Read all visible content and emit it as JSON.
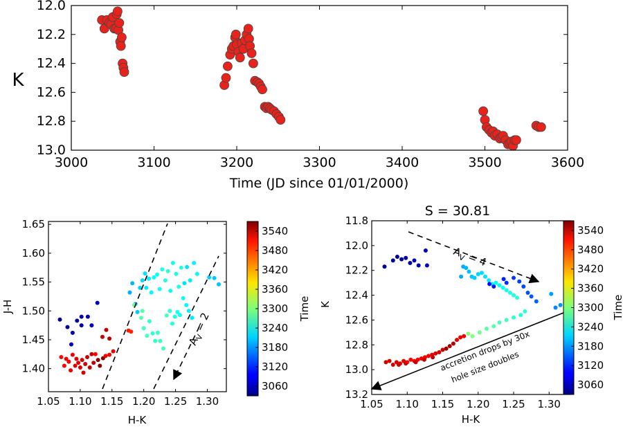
{
  "chart_data": [
    {
      "id": "top",
      "type": "scatter",
      "title": "",
      "xlabel": "Time (JD since 01/01/2000)",
      "ylabel": "K",
      "xlim": [
        3000,
        3600
      ],
      "ylim": [
        13.0,
        12.0
      ],
      "y_inverted": true,
      "xticks": [
        3000,
        3100,
        3200,
        3300,
        3400,
        3500,
        3600
      ],
      "yticks": [
        12.0,
        12.2,
        12.4,
        12.6,
        12.8,
        13.0
      ],
      "xtick_labels": [
        "3000",
        "3100",
        "3200",
        "3300",
        "3400",
        "3500",
        "3600"
      ],
      "ytick_labels": [
        "12.0",
        "12.2",
        "12.4",
        "12.6",
        "12.8",
        "13.0"
      ],
      "marker_color": "#e8231c",
      "marker_edge": "#444444",
      "points": [
        [
          3037,
          12.1
        ],
        [
          3040,
          12.16
        ],
        [
          3043,
          12.1
        ],
        [
          3046,
          12.12
        ],
        [
          3048,
          12.13
        ],
        [
          3050,
          12.08
        ],
        [
          3052,
          12.16
        ],
        [
          3054,
          12.16
        ],
        [
          3055,
          12.06
        ],
        [
          3056,
          12.04
        ],
        [
          3057,
          12.17
        ],
        [
          3058,
          12.12
        ],
        [
          3059,
          12.25
        ],
        [
          3060,
          12.28
        ],
        [
          3061,
          12.22
        ],
        [
          3062,
          12.4
        ],
        [
          3063,
          12.43
        ],
        [
          3064,
          12.46
        ],
        [
          3185,
          12.55
        ],
        [
          3187,
          12.5
        ],
        [
          3189,
          12.42
        ],
        [
          3192,
          12.34
        ],
        [
          3194,
          12.3
        ],
        [
          3196,
          12.28
        ],
        [
          3198,
          12.22
        ],
        [
          3199,
          12.2
        ],
        [
          3200,
          12.27
        ],
        [
          3202,
          12.32
        ],
        [
          3204,
          12.36
        ],
        [
          3206,
          12.26
        ],
        [
          3208,
          12.3
        ],
        [
          3210,
          12.24
        ],
        [
          3212,
          12.2
        ],
        [
          3214,
          12.16
        ],
        [
          3215,
          12.23
        ],
        [
          3216,
          12.28
        ],
        [
          3218,
          12.33
        ],
        [
          3220,
          12.4
        ],
        [
          3222,
          12.52
        ],
        [
          3225,
          12.53
        ],
        [
          3227,
          12.54
        ],
        [
          3229,
          12.56
        ],
        [
          3231,
          12.58
        ],
        [
          3234,
          12.7
        ],
        [
          3236,
          12.71
        ],
        [
          3238,
          12.7
        ],
        [
          3240,
          12.71
        ],
        [
          3242,
          12.72
        ],
        [
          3245,
          12.73
        ],
        [
          3248,
          12.75
        ],
        [
          3251,
          12.77
        ],
        [
          3253,
          12.79
        ],
        [
          3498,
          12.73
        ],
        [
          3500,
          12.79
        ],
        [
          3502,
          12.84
        ],
        [
          3505,
          12.86
        ],
        [
          3508,
          12.88
        ],
        [
          3510,
          12.87
        ],
        [
          3512,
          12.9
        ],
        [
          3515,
          12.89
        ],
        [
          3518,
          12.92
        ],
        [
          3520,
          12.91
        ],
        [
          3522,
          12.9
        ],
        [
          3525,
          12.93
        ],
        [
          3528,
          12.96
        ],
        [
          3530,
          12.95
        ],
        [
          3532,
          12.94
        ],
        [
          3534,
          12.97
        ],
        [
          3536,
          12.93
        ],
        [
          3538,
          12.93
        ],
        [
          3562,
          12.83
        ],
        [
          3565,
          12.84
        ],
        [
          3568,
          12.84
        ]
      ]
    },
    {
      "id": "left",
      "type": "scatter",
      "title": "",
      "xlabel": "H-K",
      "ylabel": "J-H",
      "xlim": [
        1.05,
        1.33
      ],
      "ylim": [
        1.36,
        1.655
      ],
      "xticks": [
        1.05,
        1.1,
        1.15,
        1.2,
        1.25,
        1.3
      ],
      "yticks": [
        1.4,
        1.45,
        1.5,
        1.55,
        1.6,
        1.65
      ],
      "xtick_labels": [
        "1.05",
        "1.10",
        "1.15",
        "1.20",
        "1.25",
        "1.30"
      ],
      "ytick_labels": [
        "1.40",
        "1.45",
        "1.50",
        "1.55",
        "1.60",
        "1.65"
      ],
      "colorbar": {
        "label": "Time",
        "vmin": 3030,
        "vmax": 3570,
        "ticks": [
          3060,
          3120,
          3180,
          3240,
          3300,
          3360,
          3420,
          3480,
          3540
        ],
        "tick_labels": [
          "3060",
          "3120",
          "3180",
          "3240",
          "3300",
          "3360",
          "3420",
          "3480",
          "3540"
        ]
      },
      "annotation": "A",
      "annotation_sub": "V",
      "annotation_tail": " = 2",
      "points": [
        [
          1.068,
          1.485,
          3040
        ],
        [
          1.08,
          1.472,
          3045
        ],
        [
          1.088,
          1.462,
          3050
        ],
        [
          1.095,
          1.483,
          3048
        ],
        [
          1.102,
          1.49,
          3055
        ],
        [
          1.102,
          1.475,
          3056
        ],
        [
          1.112,
          1.49,
          3058
        ],
        [
          1.118,
          1.475,
          3060
        ],
        [
          1.127,
          1.514,
          3062
        ],
        [
          1.086,
          1.442,
          3064
        ],
        [
          1.135,
          1.455,
          3530
        ],
        [
          1.141,
          1.467,
          3535
        ],
        [
          1.146,
          1.452,
          3540
        ],
        [
          1.07,
          1.42,
          3500
        ],
        [
          1.075,
          1.405,
          3502
        ],
        [
          1.078,
          1.417,
          3505
        ],
        [
          1.082,
          1.412,
          3508
        ],
        [
          1.085,
          1.397,
          3510
        ],
        [
          1.088,
          1.424,
          3512
        ],
        [
          1.092,
          1.405,
          3515
        ],
        [
          1.094,
          1.417,
          3518
        ],
        [
          1.097,
          1.41,
          3520
        ],
        [
          1.1,
          1.402,
          3522
        ],
        [
          1.103,
          1.415,
          3524
        ],
        [
          1.105,
          1.393,
          3526
        ],
        [
          1.108,
          1.408,
          3528
        ],
        [
          1.111,
          1.42,
          3530
        ],
        [
          1.115,
          1.402,
          3532
        ],
        [
          1.118,
          1.425,
          3534
        ],
        [
          1.121,
          1.41,
          3536
        ],
        [
          1.124,
          1.425,
          3498
        ],
        [
          1.128,
          1.415,
          3562
        ],
        [
          1.131,
          1.405,
          3565
        ],
        [
          1.136,
          1.418,
          3568
        ],
        [
          1.14,
          1.422,
          3507
        ],
        [
          1.146,
          1.424,
          3503
        ],
        [
          1.152,
          1.43,
          3511
        ],
        [
          1.176,
          1.466,
          3490
        ],
        [
          1.18,
          1.464,
          3485
        ],
        [
          1.178,
          1.532,
          3190
        ],
        [
          1.182,
          1.548,
          3194
        ],
        [
          1.187,
          1.512,
          3200
        ],
        [
          1.19,
          1.498,
          3205
        ],
        [
          1.194,
          1.54,
          3210
        ],
        [
          1.198,
          1.553,
          3214
        ],
        [
          1.202,
          1.565,
          3218
        ],
        [
          1.204,
          1.54,
          3222
        ],
        [
          1.208,
          1.556,
          3226
        ],
        [
          1.212,
          1.532,
          3230
        ],
        [
          1.216,
          1.558,
          3234
        ],
        [
          1.221,
          1.563,
          3238
        ],
        [
          1.225,
          1.538,
          3242
        ],
        [
          1.229,
          1.572,
          3246
        ],
        [
          1.234,
          1.553,
          3250
        ],
        [
          1.238,
          1.569,
          3253
        ],
        [
          1.242,
          1.535,
          3236
        ],
        [
          1.246,
          1.583,
          3240
        ],
        [
          1.251,
          1.564,
          3244
        ],
        [
          1.255,
          1.542,
          3248
        ],
        [
          1.259,
          1.575,
          3252
        ],
        [
          1.264,
          1.548,
          3216
        ],
        [
          1.268,
          1.576,
          3220
        ],
        [
          1.273,
          1.553,
          3224
        ],
        [
          1.279,
          1.583,
          3228
        ],
        [
          1.284,
          1.564,
          3232
        ],
        [
          1.303,
          1.558,
          3208
        ],
        [
          1.311,
          1.557,
          3204
        ],
        [
          1.318,
          1.546,
          3200
        ],
        [
          1.185,
          1.51,
          3285
        ],
        [
          1.198,
          1.5,
          3280
        ],
        [
          1.196,
          1.488,
          3275
        ],
        [
          1.2,
          1.47,
          3265
        ],
        [
          1.205,
          1.457,
          3270
        ],
        [
          1.209,
          1.482,
          3260
        ],
        [
          1.214,
          1.461,
          3255
        ],
        [
          1.218,
          1.448,
          3258
        ],
        [
          1.222,
          1.462,
          3262
        ],
        [
          1.226,
          1.448,
          3266
        ],
        [
          1.231,
          1.435,
          3268
        ],
        [
          1.236,
          1.492,
          3270
        ],
        [
          1.241,
          1.5,
          3255
        ],
        [
          1.245,
          1.478,
          3250
        ],
        [
          1.249,
          1.49,
          3246
        ],
        [
          1.253,
          1.498,
          3242
        ],
        [
          1.257,
          1.493,
          3238
        ],
        [
          1.262,
          1.522,
          3234
        ],
        [
          1.267,
          1.51,
          3230
        ],
        [
          1.271,
          1.5,
          3226
        ],
        [
          1.276,
          1.488,
          3222
        ]
      ]
    },
    {
      "id": "right",
      "type": "scatter",
      "title": "S = 30.81",
      "xlabel": "H-K",
      "ylabel": "K",
      "xlim": [
        1.05,
        1.33
      ],
      "ylim": [
        13.2,
        11.8
      ],
      "y_inverted": true,
      "xticks": [
        1.05,
        1.1,
        1.15,
        1.2,
        1.25,
        1.3
      ],
      "yticks": [
        11.8,
        12.0,
        12.2,
        12.4,
        12.6,
        12.8,
        13.0,
        13.2
      ],
      "xtick_labels": [
        "1.05",
        "1.10",
        "1.15",
        "1.20",
        "1.25",
        "1.30"
      ],
      "ytick_labels": [
        "11.8",
        "12.0",
        "12.2",
        "12.4",
        "12.6",
        "12.8",
        "13.0",
        "13.2"
      ],
      "colorbar": {
        "label": "Time",
        "vmin": 3030,
        "vmax": 3570,
        "ticks": [
          3060,
          3120,
          3180,
          3240,
          3300,
          3360,
          3420,
          3480,
          3540
        ],
        "tick_labels": [
          "3060",
          "3120",
          "3180",
          "3240",
          "3300",
          "3360",
          "3420",
          "3480",
          "3540"
        ]
      },
      "annotation": "A",
      "annotation_sub": "V",
      "annotation_tail": " = 4",
      "annotation2_line1": "accretion drops by 30x",
      "annotation2_line2": "hole size doubles",
      "points": [
        [
          1.068,
          12.17,
          3040
        ],
        [
          1.08,
          12.12,
          3045
        ],
        [
          1.086,
          12.09,
          3048
        ],
        [
          1.092,
          12.11,
          3050
        ],
        [
          1.098,
          12.1,
          3052
        ],
        [
          1.104,
          12.14,
          3055
        ],
        [
          1.11,
          12.12,
          3058
        ],
        [
          1.116,
          12.16,
          3060
        ],
        [
          1.126,
          12.04,
          3062
        ],
        [
          1.128,
          12.16,
          3064
        ],
        [
          1.176,
          12.25,
          3187
        ],
        [
          1.179,
          12.17,
          3190
        ],
        [
          1.183,
          12.18,
          3194
        ],
        [
          1.187,
          12.21,
          3198
        ],
        [
          1.191,
          12.25,
          3202
        ],
        [
          1.195,
          12.26,
          3206
        ],
        [
          1.2,
          12.23,
          3210
        ],
        [
          1.205,
          12.22,
          3214
        ],
        [
          1.21,
          12.25,
          3218
        ],
        [
          1.215,
          12.28,
          3222
        ],
        [
          1.22,
          12.31,
          3226
        ],
        [
          1.225,
          12.3,
          3230
        ],
        [
          1.23,
          12.32,
          3234
        ],
        [
          1.235,
          12.34,
          3238
        ],
        [
          1.24,
          12.36,
          3242
        ],
        [
          1.245,
          12.38,
          3246
        ],
        [
          1.25,
          12.4,
          3250
        ],
        [
          1.255,
          12.42,
          3253
        ],
        [
          1.216,
          12.31,
          3105
        ],
        [
          1.222,
          12.33,
          3110
        ],
        [
          1.236,
          12.27,
          3115
        ],
        [
          1.24,
          12.3,
          3120
        ],
        [
          1.25,
          12.26,
          3125
        ],
        [
          1.258,
          12.29,
          3130
        ],
        [
          1.264,
          12.33,
          3135
        ],
        [
          1.27,
          12.38,
          3140
        ],
        [
          1.275,
          12.41,
          3145
        ],
        [
          1.282,
          12.45,
          3150
        ],
        [
          1.303,
          12.39,
          3182
        ],
        [
          1.309,
          12.5,
          3170
        ],
        [
          1.316,
          12.48,
          3175
        ],
        [
          1.266,
          12.53,
          3255
        ],
        [
          1.26,
          12.56,
          3250
        ],
        [
          1.25,
          12.58,
          3260
        ],
        [
          1.24,
          12.6,
          3265
        ],
        [
          1.23,
          12.62,
          3270
        ],
        [
          1.222,
          12.65,
          3275
        ],
        [
          1.212,
          12.67,
          3280
        ],
        [
          1.202,
          12.7,
          3290
        ],
        [
          1.192,
          12.73,
          3300
        ],
        [
          1.186,
          12.71,
          3305
        ],
        [
          1.18,
          12.73,
          3505
        ],
        [
          1.175,
          12.74,
          3510
        ],
        [
          1.17,
          12.76,
          3515
        ],
        [
          1.165,
          12.79,
          3540
        ],
        [
          1.16,
          12.81,
          3545
        ],
        [
          1.155,
          12.83,
          3550
        ],
        [
          1.15,
          12.84,
          3535
        ],
        [
          1.145,
          12.86,
          3525
        ],
        [
          1.14,
          12.87,
          3520
        ],
        [
          1.135,
          12.88,
          3515
        ],
        [
          1.13,
          12.89,
          3512
        ],
        [
          1.125,
          12.9,
          3510
        ],
        [
          1.12,
          12.91,
          3507
        ],
        [
          1.115,
          12.92,
          3505
        ],
        [
          1.11,
          12.93,
          3502
        ],
        [
          1.105,
          12.92,
          3500
        ],
        [
          1.1,
          12.94,
          3498
        ],
        [
          1.095,
          12.93,
          3515
        ],
        [
          1.09,
          12.95,
          3518
        ],
        [
          1.085,
          12.94,
          3520
        ],
        [
          1.08,
          12.96,
          3522
        ],
        [
          1.075,
          12.93,
          3524
        ],
        [
          1.07,
          12.94,
          3526
        ],
        [
          1.088,
          12.96,
          3528
        ],
        [
          1.098,
          12.95,
          3530
        ],
        [
          1.112,
          12.94,
          3532
        ],
        [
          1.124,
          12.92,
          3534
        ],
        [
          1.136,
          12.9,
          3536
        ]
      ]
    }
  ]
}
